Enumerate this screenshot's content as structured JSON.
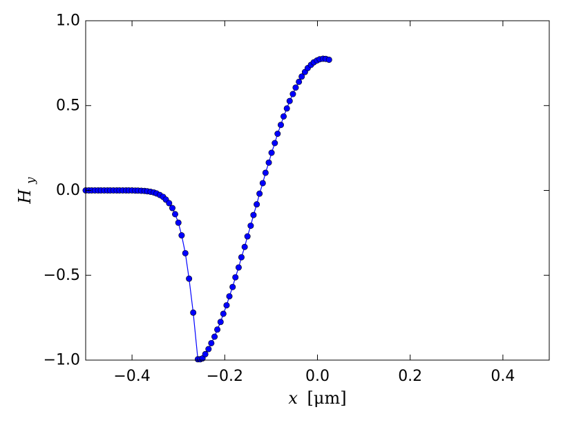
{
  "chart_data": {
    "type": "line",
    "title": "",
    "xlabel_parts": {
      "var": "x",
      "unit": "[μm]"
    },
    "ylabel_parts": {
      "base": "H",
      "sub": "y"
    },
    "xlim": [
      -0.5,
      0.5
    ],
    "ylim": [
      -1.0,
      1.0
    ],
    "xticks": [
      -0.4,
      -0.2,
      0.0,
      0.2,
      0.4
    ],
    "xtick_labels": [
      "−0.4",
      "−0.2",
      "0.0",
      "0.2",
      "0.4"
    ],
    "yticks": [
      -1.0,
      -0.5,
      0.0,
      0.5,
      1.0
    ],
    "ytick_labels": [
      "−1.0",
      "−0.5",
      "0.0",
      "0.5",
      "1.0"
    ],
    "grid": false,
    "series": [
      {
        "color": "#0000ff",
        "marker": "circle",
        "points": [
          [
            -0.5,
            0.0
          ],
          [
            -0.493,
            0.0
          ],
          [
            -0.487,
            0.0
          ],
          [
            -0.48,
            0.0
          ],
          [
            -0.473,
            0.0
          ],
          [
            -0.467,
            0.0
          ],
          [
            -0.46,
            0.0
          ],
          [
            -0.453,
            0.0
          ],
          [
            -0.447,
            0.0
          ],
          [
            -0.44,
            0.0
          ],
          [
            -0.433,
            0.0
          ],
          [
            -0.427,
            0.0
          ],
          [
            -0.42,
            0.0
          ],
          [
            -0.413,
            0.0
          ],
          [
            -0.407,
            0.0
          ],
          [
            -0.4,
            0.0
          ],
          [
            -0.393,
            -0.001
          ],
          [
            -0.387,
            -0.001
          ],
          [
            -0.38,
            -0.002
          ],
          [
            -0.373,
            -0.003
          ],
          [
            -0.367,
            -0.005
          ],
          [
            -0.36,
            -0.008
          ],
          [
            -0.353,
            -0.012
          ],
          [
            -0.347,
            -0.018
          ],
          [
            -0.34,
            -0.027
          ],
          [
            -0.333,
            -0.038
          ],
          [
            -0.327,
            -0.054
          ],
          [
            -0.32,
            -0.075
          ],
          [
            -0.313,
            -0.104
          ],
          [
            -0.307,
            -0.14
          ],
          [
            -0.3,
            -0.19
          ],
          [
            -0.293,
            -0.265
          ],
          [
            -0.285,
            -0.37
          ],
          [
            -0.277,
            -0.52
          ],
          [
            -0.268,
            -0.72
          ],
          [
            -0.258,
            -0.995
          ],
          [
            -0.253,
            -0.995
          ],
          [
            -0.248,
            -0.99
          ],
          [
            -0.242,
            -0.965
          ],
          [
            -0.235,
            -0.935
          ],
          [
            -0.229,
            -0.9
          ],
          [
            -0.222,
            -0.862
          ],
          [
            -0.216,
            -0.82
          ],
          [
            -0.209,
            -0.775
          ],
          [
            -0.203,
            -0.727
          ],
          [
            -0.196,
            -0.677
          ],
          [
            -0.19,
            -0.624
          ],
          [
            -0.183,
            -0.569
          ],
          [
            -0.177,
            -0.512
          ],
          [
            -0.17,
            -0.454
          ],
          [
            -0.164,
            -0.394
          ],
          [
            -0.157,
            -0.333
          ],
          [
            -0.151,
            -0.271
          ],
          [
            -0.144,
            -0.208
          ],
          [
            -0.138,
            -0.145
          ],
          [
            -0.131,
            -0.082
          ],
          [
            -0.125,
            -0.019
          ],
          [
            -0.118,
            0.043
          ],
          [
            -0.112,
            0.104
          ],
          [
            -0.105,
            0.164
          ],
          [
            -0.099,
            0.222
          ],
          [
            -0.092,
            0.279
          ],
          [
            -0.086,
            0.334
          ],
          [
            -0.079,
            0.386
          ],
          [
            -0.073,
            0.436
          ],
          [
            -0.066,
            0.483
          ],
          [
            -0.06,
            0.527
          ],
          [
            -0.053,
            0.568
          ],
          [
            -0.047,
            0.606
          ],
          [
            -0.04,
            0.64
          ],
          [
            -0.034,
            0.671
          ],
          [
            -0.027,
            0.698
          ],
          [
            -0.021,
            0.721
          ],
          [
            -0.014,
            0.74
          ],
          [
            -0.008,
            0.755
          ],
          [
            -0.001,
            0.766
          ],
          [
            0.005,
            0.773
          ],
          [
            0.012,
            0.776
          ],
          [
            0.018,
            0.775
          ],
          [
            0.025,
            0.77
          ]
        ]
      }
    ]
  }
}
